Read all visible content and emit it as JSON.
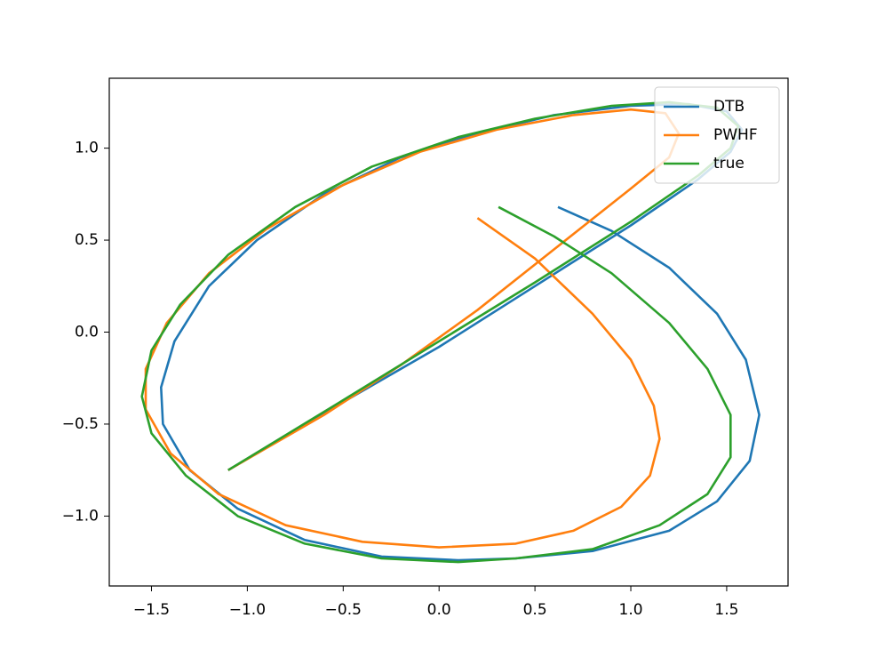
{
  "chart_data": {
    "type": "line",
    "xlim": [
      -1.72,
      1.82
    ],
    "ylim": [
      -1.38,
      1.38
    ],
    "xticks": [
      {
        "value": -1.5,
        "label": "−1.5"
      },
      {
        "value": -1.0,
        "label": "−1.0"
      },
      {
        "value": -0.5,
        "label": "−0.5"
      },
      {
        "value": 0,
        "label": "0.0"
      },
      0.5,
      {
        "value": 1.0,
        "label": "1.0"
      },
      1.5
    ],
    "yticks": [
      {
        "value": -1.0,
        "label": "−1.0"
      },
      {
        "value": -0.5,
        "label": "−0.5"
      },
      {
        "value": 0,
        "label": "0.0"
      },
      0.5,
      {
        "value": 1.0,
        "label": "1.0"
      }
    ],
    "legend": "upper right",
    "series": [
      {
        "name": "DTB",
        "color": "#1f77b4",
        "x": [
          0.62,
          0.9,
          1.2,
          1.45,
          1.6,
          1.67,
          1.62,
          1.45,
          1.2,
          0.8,
          0.4,
          0.1,
          -0.3,
          -0.7,
          -1.05,
          -1.3,
          -1.44,
          -1.45,
          -1.38,
          -1.2,
          -0.95,
          -0.6,
          -0.2,
          0.2,
          0.6,
          1.0,
          1.3,
          1.5,
          1.58,
          1.52,
          1.35,
          1.0,
          0.5,
          0,
          -0.5,
          -1.1
        ],
        "values": [
          0.68,
          0.55,
          0.35,
          0.1,
          -0.15,
          -0.45,
          -0.7,
          -0.92,
          -1.08,
          -1.19,
          -1.23,
          -1.24,
          -1.22,
          -1.13,
          -0.96,
          -0.75,
          -0.5,
          -0.3,
          -0.05,
          0.25,
          0.5,
          0.75,
          0.95,
          1.08,
          1.18,
          1.23,
          1.24,
          1.2,
          1.1,
          0.98,
          0.83,
          0.58,
          0.25,
          -0.08,
          -0.38,
          -0.75
        ]
      },
      {
        "name": "PWHF",
        "color": "#ff7f0e",
        "x": [
          0.2,
          0.5,
          0.8,
          1.0,
          1.12,
          1.15,
          1.1,
          0.95,
          0.7,
          0.4,
          0,
          -0.4,
          -0.8,
          -1.15,
          -1.4,
          -1.53,
          -1.53,
          -1.42,
          -1.2,
          -0.9,
          -0.5,
          -0.1,
          0.3,
          0.7,
          1.0,
          1.18,
          1.25,
          1.2,
          1.0,
          0.6,
          0.2,
          -0.2,
          -0.6,
          -1.1
        ],
        "values": [
          0.62,
          0.4,
          0.1,
          -0.15,
          -0.4,
          -0.58,
          -0.78,
          -0.95,
          -1.08,
          -1.15,
          -1.17,
          -1.14,
          -1.05,
          -0.88,
          -0.66,
          -0.42,
          -0.2,
          0.05,
          0.32,
          0.56,
          0.8,
          0.98,
          1.1,
          1.18,
          1.21,
          1.19,
          1.08,
          0.95,
          0.78,
          0.45,
          0.12,
          -0.18,
          -0.45,
          -0.75
        ]
      },
      {
        "name": "true",
        "color": "#2ca02c",
        "x": [
          0.31,
          0.6,
          0.9,
          1.2,
          1.4,
          1.52,
          1.52,
          1.4,
          1.15,
          0.8,
          0.4,
          0.1,
          -0.3,
          -0.7,
          -1.05,
          -1.32,
          -1.5,
          -1.55,
          -1.5,
          -1.35,
          -1.1,
          -0.75,
          -0.35,
          0.1,
          0.5,
          0.9,
          1.2,
          1.45,
          1.56,
          1.52,
          1.35,
          1.0,
          0.5,
          0,
          -0.5,
          -1.1
        ],
        "values": [
          0.68,
          0.52,
          0.32,
          0.05,
          -0.2,
          -0.45,
          -0.68,
          -0.88,
          -1.05,
          -1.18,
          -1.23,
          -1.25,
          -1.23,
          -1.15,
          -1.0,
          -0.78,
          -0.55,
          -0.35,
          -0.1,
          0.15,
          0.42,
          0.68,
          0.9,
          1.06,
          1.16,
          1.23,
          1.25,
          1.22,
          1.12,
          1.0,
          0.85,
          0.6,
          0.27,
          -0.05,
          -0.37,
          -0.75
        ]
      }
    ]
  }
}
